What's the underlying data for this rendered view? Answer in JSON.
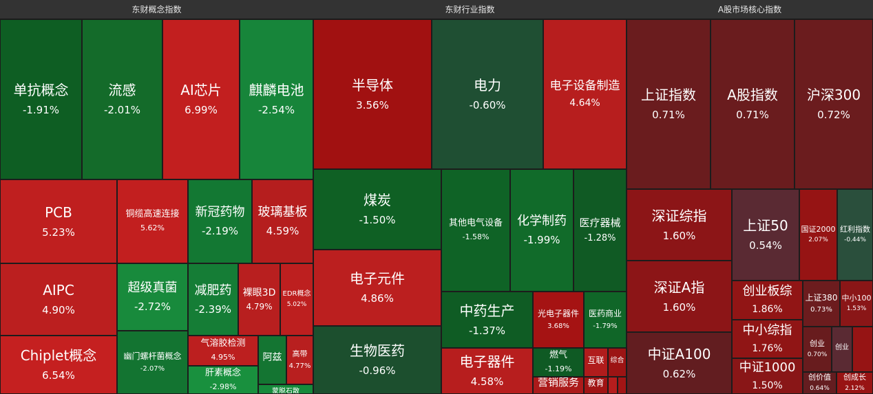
{
  "panels": [
    {
      "title": "东财概念指数",
      "tiles": [
        {
          "name": "单抗概念",
          "pct": "-1.91%",
          "color": "#0e5e23"
        },
        {
          "name": "流感",
          "pct": "-2.01%",
          "color": "#146b2a"
        },
        {
          "name": "AI芯片",
          "pct": "6.99%",
          "color": "#c21f1f"
        },
        {
          "name": "麒麟电池",
          "pct": "-2.54%",
          "color": "#17853a"
        },
        {
          "name": "PCB",
          "pct": "5.23%",
          "color": "#bf1f1f"
        },
        {
          "name": "铜缆高速连接",
          "pct": "5.62%",
          "color": "#c21f1f"
        },
        {
          "name": "新冠药物",
          "pct": "-2.19%",
          "color": "#137833"
        },
        {
          "name": "玻璃基板",
          "pct": "4.59%",
          "color": "#b51e1e"
        },
        {
          "name": "AIPC",
          "pct": "4.90%",
          "color": "#bb1f1f"
        },
        {
          "name": "超级真菌",
          "pct": "-2.72%",
          "color": "#188a3c"
        },
        {
          "name": "减肥药",
          "pct": "-2.39%",
          "color": "#157d36"
        },
        {
          "name": "裸眼3D",
          "pct": "4.79%",
          "color": "#b81f1f"
        },
        {
          "name": "EDR概念",
          "pct": "5.02%",
          "color": "#bd1f1f"
        },
        {
          "name": "Chiplet概念",
          "pct": "6.54%",
          "color": "#c52020"
        },
        {
          "name": "幽门螺杆菌概念",
          "pct": "-2.07%",
          "color": "#137431"
        },
        {
          "name": "气溶胶检测",
          "pct": "4.95%",
          "color": "#bc1f1f"
        },
        {
          "name": "阿兹",
          "pct": "",
          "color": "#147532"
        },
        {
          "name": "高带",
          "pct": "4.77%",
          "color": "#b81f1f"
        },
        {
          "name": "肝素概念",
          "pct": "-2.98%",
          "color": "#19903e"
        },
        {
          "name": "蒙脱石散",
          "pct": "",
          "color": "#168a3b"
        }
      ]
    },
    {
      "title": "东财行业指数",
      "tiles": [
        {
          "name": "半导体",
          "pct": "3.56%",
          "color": "#a11111"
        },
        {
          "name": "电力",
          "pct": "-0.60%",
          "color": "#1f4f33"
        },
        {
          "name": "电子设备制造",
          "pct": "4.64%",
          "color": "#b71e1e"
        },
        {
          "name": "煤炭",
          "pct": "-1.50%",
          "color": "#0f6024"
        },
        {
          "name": "其他电气设备",
          "pct": "-1.58%",
          "color": "#0f6326"
        },
        {
          "name": "化学制药",
          "pct": "-1.99%",
          "color": "#116b2a"
        },
        {
          "name": "医疗器械",
          "pct": "-1.28%",
          "color": "#105a24"
        },
        {
          "name": "电子元件",
          "pct": "4.86%",
          "color": "#bb1f1f"
        },
        {
          "name": "中药生产",
          "pct": "-1.37%",
          "color": "#0f5c24"
        },
        {
          "name": "光电子器件",
          "pct": "3.68%",
          "color": "#a51313"
        },
        {
          "name": "医药商业",
          "pct": "-1.79%",
          "color": "#106628"
        },
        {
          "name": "生物医药",
          "pct": "-0.96%",
          "color": "#1c4f2e"
        },
        {
          "name": "电子器件",
          "pct": "4.58%",
          "color": "#b71e1e"
        },
        {
          "name": "燃气",
          "pct": "-1.19%",
          "color": "#0f5a24"
        },
        {
          "name": "互联",
          "pct": "",
          "color": "#b01c1c"
        },
        {
          "name": "综合",
          "pct": "",
          "color": "#9c1414"
        },
        {
          "name": "营销服务",
          "pct": "",
          "color": "#ab1a1a"
        },
        {
          "name": "教育",
          "pct": "",
          "color": "#a01414"
        },
        {
          "name": "",
          "pct": "",
          "color": "#b51d1d"
        },
        {
          "name": "",
          "pct": "",
          "color": "#a21515"
        }
      ]
    },
    {
      "title": "A股市场核心指数",
      "tiles": [
        {
          "name": "上证指数",
          "pct": "0.71%",
          "color": "#6a1c1e"
        },
        {
          "name": "A股指数",
          "pct": "0.71%",
          "color": "#6a1c1e"
        },
        {
          "name": "沪深300",
          "pct": "0.72%",
          "color": "#6b1c1e"
        },
        {
          "name": "深证综指",
          "pct": "1.60%",
          "color": "#8c1517"
        },
        {
          "name": "上证50",
          "pct": "0.54%",
          "color": "#5a2a33"
        },
        {
          "name": "国证2000",
          "pct": "2.07%",
          "color": "#961414"
        },
        {
          "name": "红利指数",
          "pct": "-0.44%",
          "color": "#2a4f3c"
        },
        {
          "name": "深证A指",
          "pct": "1.60%",
          "color": "#8c1517"
        },
        {
          "name": "创业板综",
          "pct": "1.86%",
          "color": "#911515"
        },
        {
          "name": "上证380",
          "pct": "0.73%",
          "color": "#6c1c1e"
        },
        {
          "name": "中小100",
          "pct": "1.53%",
          "color": "#8a1617"
        },
        {
          "name": "中小综指",
          "pct": "1.76%",
          "color": "#901515"
        },
        {
          "name": "中证A100",
          "pct": "0.62%",
          "color": "#621d20"
        },
        {
          "name": "中证1000",
          "pct": "1.50%",
          "color": "#891617"
        },
        {
          "name": "创业",
          "pct": "0.70%",
          "color": "#681c1e"
        },
        {
          "name": "创业",
          "pct": "",
          "color": "#5a2a33"
        },
        {
          "name": "",
          "pct": "",
          "color": "#961414"
        },
        {
          "name": "创价值",
          "pct": "0.64%",
          "color": "#641d20"
        },
        {
          "name": "创成长",
          "pct": "2.12%",
          "color": "#981414"
        }
      ]
    }
  ]
}
